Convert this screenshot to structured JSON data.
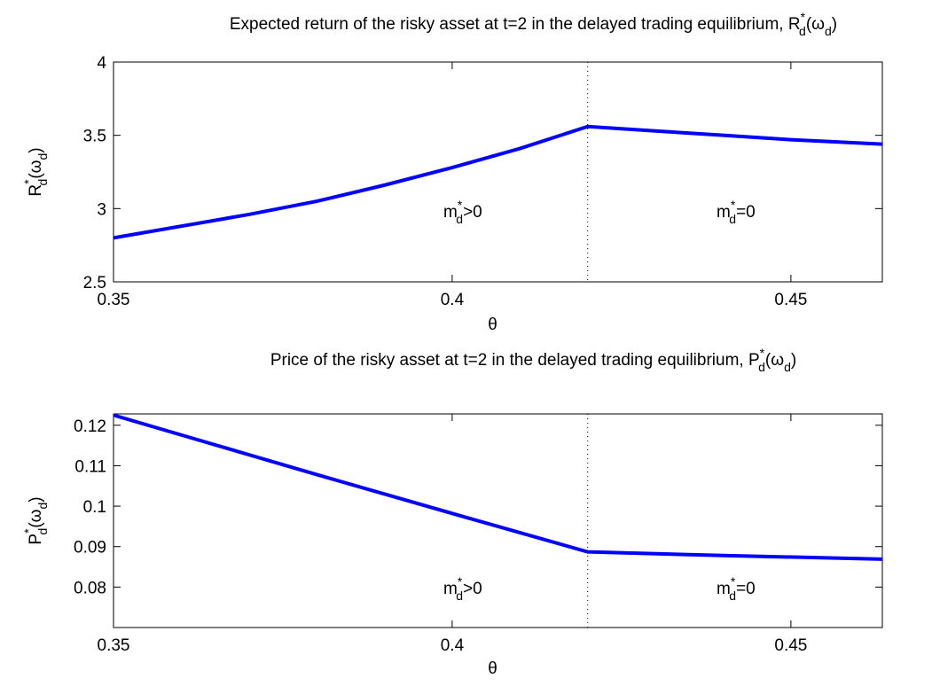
{
  "chart_data": [
    {
      "type": "line",
      "title": [
        {
          "t": "Expected return of the risky asset at t=2 in the delayed trading equilibrium, R"
        },
        {
          "sup": "*"
        },
        {
          "sub": "d"
        },
        {
          "t": "(ω"
        },
        {
          "sub": "d"
        },
        {
          "t": ")"
        }
      ],
      "x_label": [
        {
          "t": "θ"
        }
      ],
      "y_label": [
        {
          "t": "R"
        },
        {
          "sup": "*"
        },
        {
          "sub": "d"
        },
        {
          "t": "(ω"
        },
        {
          "sub": "d"
        },
        {
          "t": ")"
        }
      ],
      "x": [
        0.35,
        0.36,
        0.37,
        0.38,
        0.39,
        0.4,
        0.41,
        0.42,
        0.43,
        0.44,
        0.45,
        0.4635
      ],
      "series": [
        {
          "color": "#0000ff",
          "values": [
            2.8,
            2.88,
            2.96,
            3.05,
            3.16,
            3.28,
            3.41,
            3.56,
            3.53,
            3.5,
            3.47,
            3.44
          ]
        }
      ],
      "vline": 0.42,
      "annotations": [
        [
          {
            "t": "m"
          },
          {
            "sup": "*"
          },
          {
            "sub": "d"
          },
          {
            "t": ">0"
          }
        ],
        [
          {
            "t": "m"
          },
          {
            "sup": "*"
          },
          {
            "sub": "d"
          },
          {
            "t": "=0"
          }
        ]
      ],
      "xlim": [
        0.35,
        0.4635
      ],
      "xticks": [
        0.35,
        0.4,
        0.45
      ],
      "ylim": [
        2.5,
        4
      ],
      "yticks": [
        2.5,
        3,
        3.5,
        4
      ]
    },
    {
      "type": "line",
      "title": [
        {
          "t": "Price of the risky asset at t=2 in the delayed trading equilibrium, P"
        },
        {
          "sup": "*"
        },
        {
          "sub": "d"
        },
        {
          "t": "(ω"
        },
        {
          "sub": "d"
        },
        {
          "t": ")"
        }
      ],
      "x_label": [
        {
          "t": "θ"
        }
      ],
      "y_label": [
        {
          "t": "P"
        },
        {
          "sup": "*"
        },
        {
          "sub": "d"
        },
        {
          "t": "(ω"
        },
        {
          "sub": "d"
        },
        {
          "t": ")"
        }
      ],
      "x": [
        0.35,
        0.38,
        0.4,
        0.42,
        0.44,
        0.4635
      ],
      "series": [
        {
          "color": "#0000ff",
          "values": [
            0.1225,
            0.1078,
            0.0982,
            0.0887,
            0.0878,
            0.0869
          ]
        }
      ],
      "vline": 0.42,
      "annotations": [
        [
          {
            "t": "m"
          },
          {
            "sup": "*"
          },
          {
            "sub": "d"
          },
          {
            "t": ">0"
          }
        ],
        [
          {
            "t": "m"
          },
          {
            "sup": "*"
          },
          {
            "sub": "d"
          },
          {
            "t": "=0"
          }
        ]
      ],
      "xlim": [
        0.35,
        0.4635
      ],
      "xticks": [
        0.35,
        0.4,
        0.45
      ],
      "ylim": [
        0.07,
        0.1228
      ],
      "yticks": [
        0.08,
        0.09,
        0.1,
        0.11,
        0.12
      ]
    }
  ]
}
